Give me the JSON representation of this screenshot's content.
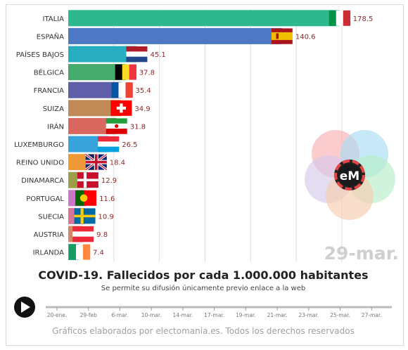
{
  "chart_data": {
    "type": "bar",
    "orientation": "horizontal",
    "title": "COVID-19. Fallecidos por cada 1.000.000 habitantes",
    "subtitle": "Se permite su difusión únicamente previo enlace a la web",
    "date_label": "29-mar.",
    "grid": true,
    "categories": [
      "ITALIA",
      "ESPAÑA",
      "PAÍSES BAJOS",
      "BÉLGICA",
      "FRANCIA",
      "SUIZA",
      "IRÁN",
      "LUXEMBURGO",
      "REINO UNIDO",
      "DINAMARCA",
      "PORTUGAL",
      "SUECIA",
      "AUSTRIA",
      "IRLANDA"
    ],
    "values": [
      178.5,
      140.6,
      45.1,
      37.8,
      35.4,
      34.9,
      31.8,
      26.5,
      18.4,
      12.9,
      11.6,
      10.9,
      9.8,
      7.4
    ],
    "value_labels": [
      "178.5",
      "140.6",
      "45.1",
      "37.8",
      "35.4",
      "34.9",
      "31.8",
      "26.5",
      "18.4",
      "12.9",
      "11.6",
      "10.9",
      "9.8",
      "7.4"
    ],
    "bar_colors": [
      "#2db88e",
      "#4c78c4",
      "#28adbf",
      "#44ab6d",
      "#5e5fa8",
      "#c08a57",
      "#d9675f",
      "#38a3db",
      "#ef9938",
      "#9c9f48",
      "#ca77c8",
      "#db7499",
      "#d58768",
      "#2fba92"
    ],
    "flags": [
      "italy",
      "spain",
      "netherlands",
      "belgium",
      "france",
      "switzerland",
      "iran",
      "luxembourg",
      "united-kingdom",
      "denmark",
      "portugal",
      "sweden",
      "austria",
      "ireland"
    ],
    "xlim": [
      0,
      180
    ],
    "grid_values": [
      30,
      60,
      90,
      120,
      150,
      180
    ],
    "timeline": {
      "ticks": [
        "20-ene.",
        "29-feb",
        "6-mar.",
        "10-mar.",
        "14-mar.",
        "17-mar.",
        "19-mar.",
        "21-mar.",
        "23-mar.",
        "25-mar.",
        "27-mar."
      ],
      "progress": 1.0
    }
  },
  "logo": {
    "text": "eM",
    "circle_colors": [
      "#f9b0b4",
      "#a8dcf2",
      "#b5eec8",
      "#f8cdb1",
      "#d6c9ea"
    ]
  },
  "footer": {
    "credit": "Gráficos elaborados por electomania.es. Todos los derechos reservados"
  },
  "icons": {
    "play": "play-icon"
  }
}
